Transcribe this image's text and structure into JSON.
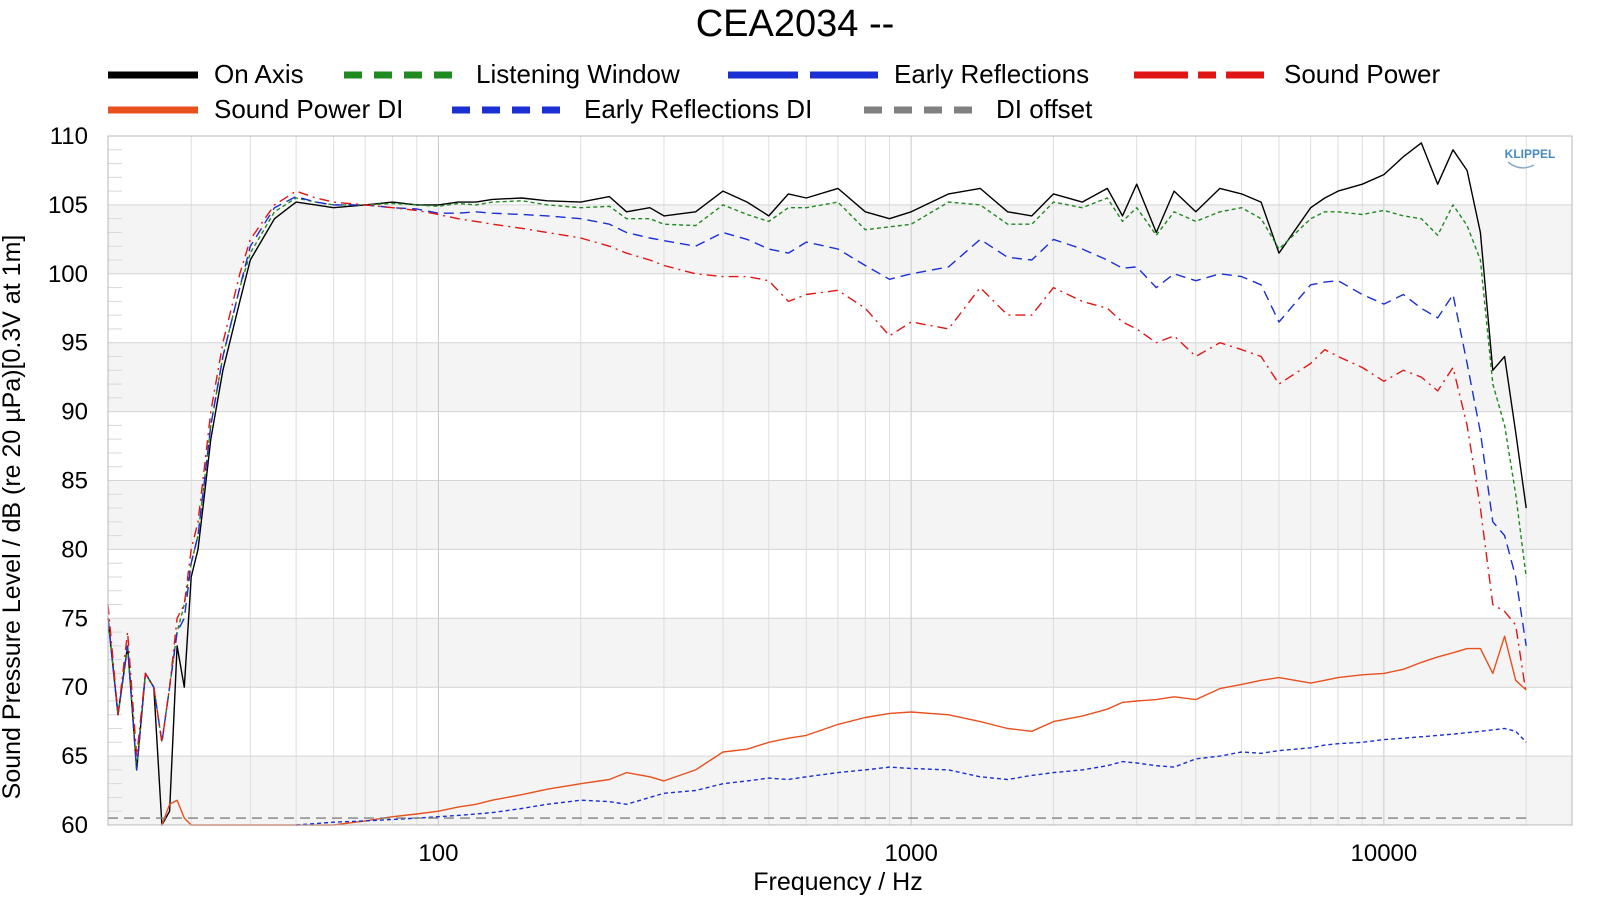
{
  "chart_data": {
    "type": "line",
    "title": "CEA2034 --",
    "xlabel": "Frequency / Hz",
    "ylabel": "Sound Pressure Level / dB (re 20 µPa)[0.3V at 1m]",
    "x_scale": "log",
    "xlim": [
      20,
      25000
    ],
    "ylim": [
      60,
      110
    ],
    "x_ticks": [
      100,
      1000,
      10000
    ],
    "x_tick_labels": [
      "100",
      "1000",
      "10000"
    ],
    "y_ticks": [
      60,
      65,
      70,
      75,
      80,
      85,
      90,
      95,
      100,
      105,
      110
    ],
    "y_tick_labels": [
      "60",
      "65",
      "70",
      "75",
      "80",
      "85",
      "90",
      "95",
      "100",
      "105",
      "110"
    ],
    "grid": true,
    "legend_position": "top",
    "logo": "KLIPPEL",
    "series": [
      {
        "name": "On Axis",
        "color": "#000000",
        "style": "solid",
        "x": [
          20,
          21,
          22,
          23,
          24,
          25,
          26,
          27,
          28,
          29,
          30,
          31,
          32,
          33,
          35,
          38,
          40,
          45,
          50,
          55,
          60,
          70,
          80,
          90,
          100,
          110,
          120,
          130,
          150,
          170,
          200,
          230,
          250,
          280,
          300,
          350,
          400,
          450,
          500,
          550,
          600,
          700,
          800,
          900,
          1000,
          1200,
          1400,
          1600,
          1800,
          2000,
          2300,
          2600,
          2800,
          3000,
          3300,
          3600,
          4000,
          4500,
          5000,
          5500,
          6000,
          7000,
          7500,
          8000,
          9000,
          10000,
          11000,
          12000,
          13000,
          14000,
          15000,
          16000,
          17000,
          18000,
          19000,
          20000
        ],
        "y": [
          75,
          68,
          73,
          64,
          71,
          70,
          55,
          61,
          73,
          70,
          78,
          80,
          84,
          88,
          93,
          98,
          101,
          104,
          105.2,
          105,
          104.8,
          105,
          105.2,
          105,
          105,
          105.2,
          105.2,
          105.4,
          105.5,
          105.3,
          105.2,
          105.6,
          104.5,
          104.8,
          104.2,
          104.5,
          106,
          105.2,
          104.2,
          105.8,
          105.5,
          106.2,
          104.5,
          104,
          104.5,
          105.8,
          106.2,
          104.5,
          104.2,
          105.8,
          105.2,
          106.2,
          104.2,
          106.5,
          103,
          106,
          104.5,
          106.2,
          105.8,
          105.2,
          101.5,
          104.8,
          105.5,
          106,
          106.5,
          107.2,
          108.5,
          109.5,
          106.5,
          109,
          107.5,
          103,
          93,
          94,
          88.5,
          83
        ]
      },
      {
        "name": "Listening Window",
        "color": "#1f8a1f",
        "style": "dotted",
        "x": [
          20,
          21,
          22,
          23,
          24,
          25,
          26,
          27,
          28,
          29,
          30,
          31,
          32,
          33,
          35,
          38,
          40,
          45,
          50,
          55,
          60,
          70,
          80,
          90,
          100,
          110,
          120,
          130,
          150,
          170,
          200,
          230,
          250,
          280,
          300,
          350,
          400,
          450,
          500,
          550,
          600,
          700,
          800,
          900,
          1000,
          1200,
          1400,
          1600,
          1800,
          2000,
          2300,
          2600,
          2800,
          3000,
          3300,
          3600,
          4000,
          4500,
          5000,
          5500,
          6000,
          7000,
          7500,
          8000,
          9000,
          10000,
          11000,
          12000,
          13000,
          14000,
          15000,
          16000,
          17000,
          18000,
          19000,
          20000
        ],
        "y": [
          75,
          68,
          73,
          64,
          71,
          70,
          66,
          70,
          74,
          76,
          79,
          81,
          85,
          89,
          94,
          99,
          101.5,
          104.5,
          105.5,
          105.2,
          105,
          105,
          105.1,
          105,
          104.9,
          105.1,
          105,
          105.2,
          105.3,
          105,
          104.8,
          104.9,
          104,
          104,
          103.6,
          103.5,
          105,
          104.3,
          103.8,
          104.8,
          104.8,
          105.2,
          103.2,
          103.4,
          103.6,
          105.2,
          105,
          103.6,
          103.6,
          105.2,
          104.8,
          105.5,
          103.8,
          104.8,
          102.8,
          104.5,
          103.8,
          104.5,
          104.8,
          104,
          101.8,
          104,
          104.5,
          104.5,
          104.3,
          104.6,
          104.2,
          104,
          102.8,
          105,
          103.5,
          101,
          92,
          89,
          84,
          78
        ]
      },
      {
        "name": "Early Reflections",
        "color": "#1a2fd4",
        "style": "dashed",
        "x": [
          20,
          21,
          22,
          23,
          24,
          25,
          26,
          27,
          28,
          29,
          30,
          31,
          32,
          33,
          35,
          38,
          40,
          45,
          50,
          55,
          60,
          70,
          80,
          90,
          100,
          110,
          120,
          130,
          150,
          170,
          200,
          230,
          250,
          280,
          300,
          350,
          400,
          450,
          500,
          550,
          600,
          700,
          800,
          900,
          1000,
          1200,
          1400,
          1600,
          1800,
          2000,
          2300,
          2600,
          2800,
          3000,
          3300,
          3600,
          4000,
          4500,
          5000,
          5500,
          6000,
          7000,
          7500,
          8000,
          9000,
          10000,
          11000,
          12000,
          13000,
          14000,
          15000,
          16000,
          17000,
          18000,
          19000,
          20000
        ],
        "y": [
          75,
          68,
          73,
          64,
          71,
          70,
          66,
          70,
          74,
          75,
          79,
          81,
          85,
          89,
          94,
          99,
          102,
          104.8,
          105.6,
          105.2,
          105,
          105,
          104.8,
          104.7,
          104.4,
          104.4,
          104.5,
          104.4,
          104.3,
          104.2,
          104,
          103.6,
          103,
          102.6,
          102.4,
          102,
          103,
          102.5,
          101.8,
          101.5,
          102.3,
          101.8,
          100.6,
          99.6,
          100,
          100.5,
          102.5,
          101.2,
          101,
          102.5,
          101.8,
          101,
          100.4,
          100.5,
          99,
          100,
          99.5,
          100,
          99.8,
          99.2,
          96.5,
          99.2,
          99.4,
          99.5,
          98.5,
          97.8,
          98.5,
          97.5,
          96.8,
          98.5,
          93.5,
          88.5,
          82,
          81,
          78,
          73
        ]
      },
      {
        "name": "Sound Power",
        "color": "#e01515",
        "style": "dashdot",
        "x": [
          20,
          21,
          22,
          23,
          24,
          25,
          26,
          27,
          28,
          29,
          30,
          31,
          32,
          33,
          35,
          38,
          40,
          45,
          50,
          55,
          60,
          70,
          80,
          90,
          100,
          110,
          120,
          130,
          150,
          170,
          200,
          230,
          250,
          280,
          300,
          350,
          400,
          450,
          500,
          550,
          600,
          700,
          800,
          900,
          1000,
          1200,
          1400,
          1600,
          1800,
          2000,
          2300,
          2600,
          2800,
          3000,
          3300,
          3600,
          4000,
          4500,
          5000,
          5500,
          6000,
          7000,
          7500,
          8000,
          9000,
          10000,
          11000,
          12000,
          13000,
          14000,
          15000,
          16000,
          17000,
          18000,
          19000,
          20000
        ],
        "y": [
          76,
          68,
          74,
          65,
          71,
          70,
          66,
          70,
          75,
          76,
          80,
          82,
          86,
          90,
          95,
          100,
          102.5,
          105,
          106,
          105.5,
          105.2,
          105,
          104.8,
          104.6,
          104.3,
          104,
          103.8,
          103.6,
          103.3,
          103,
          102.6,
          102,
          101.5,
          101,
          100.6,
          100,
          99.8,
          99.8,
          99.5,
          98,
          98.5,
          98.8,
          97.5,
          95.5,
          96.5,
          96,
          99,
          97,
          97,
          99,
          98,
          97.5,
          96.5,
          96,
          95,
          95.5,
          94,
          95,
          94.5,
          94,
          92,
          93.5,
          94.5,
          94,
          93.2,
          92.2,
          93,
          92.5,
          91.5,
          93.2,
          89,
          83,
          76,
          75.5,
          74.5,
          69.5
        ]
      },
      {
        "name": "Sound Power DI",
        "color": "#e8501e",
        "style": "solid",
        "x": [
          26,
          27,
          28,
          29,
          30,
          31,
          32,
          33,
          35,
          38,
          40,
          45,
          50,
          55,
          60,
          70,
          80,
          90,
          100,
          110,
          120,
          130,
          150,
          170,
          200,
          230,
          250,
          280,
          300,
          350,
          400,
          450,
          500,
          550,
          600,
          700,
          800,
          900,
          1000,
          1200,
          1400,
          1600,
          1800,
          2000,
          2300,
          2600,
          2800,
          3000,
          3300,
          3600,
          4000,
          4500,
          5000,
          5500,
          6000,
          7000,
          7500,
          8000,
          9000,
          10000,
          11000,
          12000,
          13000,
          14000,
          15000,
          16000,
          17000,
          18000,
          19000,
          20000
        ],
        "y": [
          60,
          61.5,
          61.8,
          60.5,
          60,
          59.5,
          59,
          58.5,
          58,
          57.8,
          58,
          58.5,
          59,
          59.5,
          60,
          60.3,
          60.6,
          60.8,
          61,
          61.3,
          61.5,
          61.8,
          62.2,
          62.6,
          63,
          63.3,
          63.8,
          63.5,
          63.2,
          64,
          65.3,
          65.5,
          66,
          66.3,
          66.5,
          67.3,
          67.8,
          68.1,
          68.2,
          68,
          67.5,
          67,
          66.8,
          67.5,
          67.9,
          68.4,
          68.9,
          69,
          69.1,
          69.3,
          69.1,
          69.9,
          70.2,
          70.5,
          70.7,
          70.3,
          70.5,
          70.7,
          70.9,
          71,
          71.3,
          71.8,
          72.2,
          72.5,
          72.8,
          72.8,
          71,
          73.7,
          70.5,
          69.8
        ]
      },
      {
        "name": "Early Reflections DI",
        "color": "#1a2fd4",
        "style": "dotted",
        "x": [
          50,
          55,
          60,
          70,
          80,
          90,
          100,
          110,
          120,
          130,
          150,
          170,
          200,
          230,
          250,
          280,
          300,
          350,
          400,
          450,
          500,
          550,
          600,
          700,
          800,
          900,
          1000,
          1200,
          1400,
          1600,
          1800,
          2000,
          2300,
          2600,
          2800,
          3000,
          3300,
          3600,
          4000,
          4500,
          5000,
          5500,
          6000,
          7000,
          7500,
          8000,
          9000,
          10000,
          11000,
          12000,
          13000,
          14000,
          15000,
          16000,
          17000,
          18000,
          19000,
          20000
        ],
        "y": [
          60,
          60.1,
          60.2,
          60.3,
          60.4,
          60.5,
          60.6,
          60.7,
          60.8,
          60.9,
          61.2,
          61.5,
          61.8,
          61.7,
          61.5,
          62,
          62.3,
          62.5,
          63,
          63.2,
          63.4,
          63.3,
          63.5,
          63.8,
          64,
          64.2,
          64.1,
          64,
          63.5,
          63.3,
          63.6,
          63.8,
          64,
          64.3,
          64.6,
          64.5,
          64.3,
          64.2,
          64.8,
          65,
          65.3,
          65.2,
          65.4,
          65.6,
          65.8,
          65.9,
          66,
          66.2,
          66.3,
          66.4,
          66.5,
          66.6,
          66.7,
          66.8,
          66.9,
          67,
          66.8,
          66
        ]
      },
      {
        "name": "DI offset",
        "color": "#808080",
        "style": "dashed",
        "x": [
          20,
          20000
        ],
        "y": [
          60.5,
          60.5
        ]
      }
    ]
  },
  "legend": [
    {
      "label": "On Axis"
    },
    {
      "label": "Listening Window"
    },
    {
      "label": "Early Reflections"
    },
    {
      "label": "Sound Power"
    },
    {
      "label": "Sound Power DI"
    },
    {
      "label": "Early Reflections DI"
    },
    {
      "label": "DI offset"
    }
  ]
}
